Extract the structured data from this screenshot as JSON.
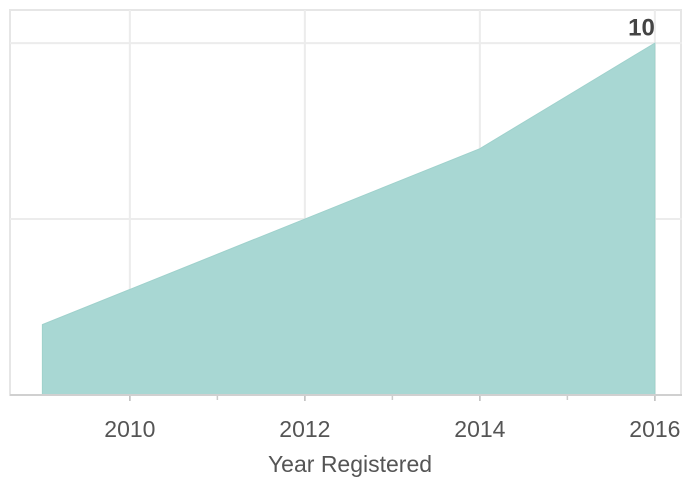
{
  "chart_data": {
    "type": "area",
    "x_label": "Year Registered",
    "x": [
      2009,
      2010,
      2011,
      2012,
      2013,
      2014,
      2015,
      2016
    ],
    "values": [
      2,
      3,
      4,
      5,
      6,
      7,
      8.5,
      10
    ],
    "color": "#a8d7d3",
    "xlim": [
      2008.63,
      2016.31
    ],
    "xticks": [
      2010,
      2012,
      2014,
      2016
    ],
    "xminorticks": [
      2011,
      2013,
      2015
    ],
    "ylim": [
      0,
      10.94
    ],
    "yticks": [
      0,
      5,
      10
    ],
    "show_ytick_labels": false,
    "grid": true,
    "label_last_point": true
  }
}
